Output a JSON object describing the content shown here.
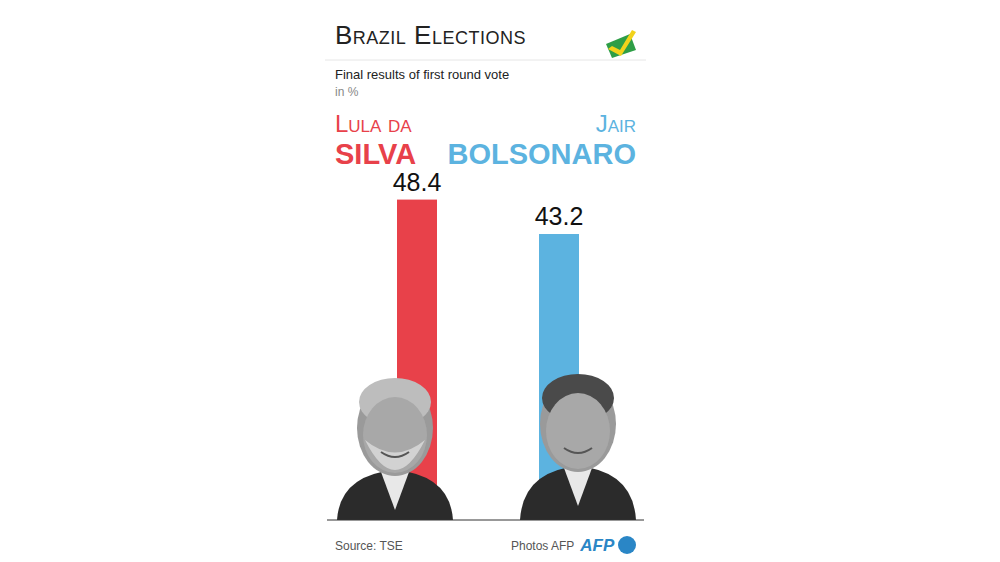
{
  "chart_data": {
    "type": "bar",
    "title": "Brazil Elections",
    "subtitle": "Final results of first round vote",
    "y_label": "in %",
    "categories": [
      "Lula da Silva",
      "Jair Bolsonaro"
    ],
    "values": [
      48.4,
      43.2
    ],
    "colors": [
      "#e8414a",
      "#5cb3e0"
    ],
    "ylim": [
      0,
      50
    ],
    "data_labels": true,
    "tick_labels": false,
    "grid": false,
    "annotations": [
      "Source: TSE",
      "Photos AFP",
      "AFP"
    ]
  }
}
